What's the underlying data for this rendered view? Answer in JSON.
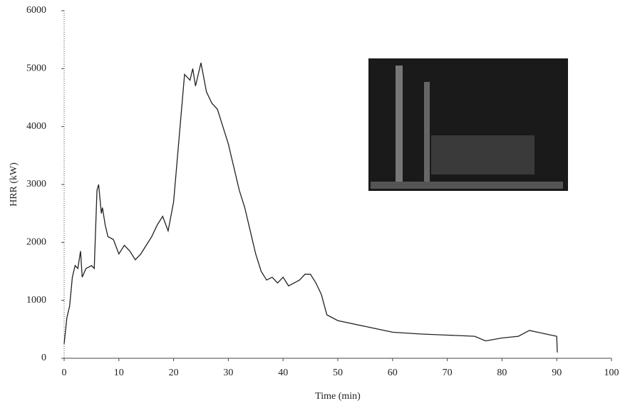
{
  "chart_data": {
    "type": "line",
    "xlabel": "Time (min)",
    "ylabel": "HRR (kW)",
    "color": "#222222",
    "x": [
      0,
      0.5,
      1,
      1.5,
      2,
      2.5,
      3,
      3.3,
      4,
      5,
      5.5,
      6,
      6.3,
      6.8,
      7,
      7.5,
      8,
      9,
      10,
      11,
      12,
      13,
      14,
      15,
      16,
      17,
      18,
      19,
      20,
      21,
      22,
      23,
      23.5,
      24,
      25,
      26,
      27,
      28,
      29,
      30,
      31,
      32,
      33,
      34,
      35,
      36,
      37,
      38,
      39,
      40,
      41,
      42,
      43,
      44,
      45,
      46,
      47,
      48,
      50,
      55,
      60,
      65,
      70,
      75,
      77,
      80,
      83,
      85,
      88,
      90,
      90.1
    ],
    "values": [
      250,
      700,
      900,
      1400,
      1600,
      1550,
      1850,
      1400,
      1550,
      1600,
      1550,
      2900,
      3000,
      2500,
      2600,
      2300,
      2100,
      2050,
      1800,
      1950,
      1850,
      1700,
      1800,
      1950,
      2100,
      2300,
      2450,
      2200,
      2700,
      3800,
      4900,
      4800,
      5000,
      4700,
      5100,
      4600,
      4400,
      4300,
      4000,
      3700,
      3300,
      2900,
      2600,
      2200,
      1800,
      1500,
      1350,
      1400,
      1300,
      1400,
      1250,
      1300,
      1350,
      1450,
      1450,
      1300,
      1100,
      750,
      650,
      550,
      450,
      420,
      400,
      380,
      300,
      350,
      380,
      480,
      420,
      380,
      100
    ],
    "xlim": [
      0,
      100
    ],
    "xticks": [
      0,
      10,
      20,
      30,
      40,
      50,
      60,
      70,
      80,
      90,
      100
    ],
    "ylim": [
      0,
      6000
    ],
    "yticks": [
      0,
      1000,
      2000,
      3000,
      4000,
      5000,
      6000
    ],
    "grid": false
  }
}
